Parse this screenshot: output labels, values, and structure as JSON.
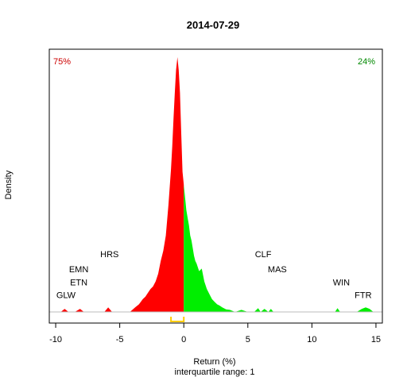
{
  "chart_data": {
    "type": "area",
    "title": "2014-07-29",
    "xlabel": "Return (%)",
    "xlabel_sub": "interquartile range: 1",
    "ylabel": "Density",
    "xlim": [
      -10.5,
      15.5
    ],
    "ylim": [
      0,
      1
    ],
    "xticks": [
      -10,
      -5,
      0,
      5,
      10,
      15
    ],
    "negative_share": "75%",
    "positive_share": "24%",
    "colors": {
      "negative": "#ff0000",
      "positive": "#00ee00",
      "iqr": "#ffcc00",
      "baseline": "#bebebe"
    },
    "iqr": [
      -1.0,
      0.0
    ],
    "density": {
      "x": [
        -10.5,
        -9.6,
        -9.3,
        -9.0,
        -8.5,
        -8.1,
        -7.8,
        -7.5,
        -6.2,
        -5.9,
        -5.6,
        -5.0,
        -4.2,
        -3.8,
        -3.5,
        -3.2,
        -3.0,
        -2.8,
        -2.6,
        -2.4,
        -2.2,
        -2.0,
        -1.8,
        -1.6,
        -1.4,
        -1.2,
        -1.0,
        -0.9,
        -0.8,
        -0.7,
        -0.6,
        -0.5,
        -0.4,
        -0.3,
        -0.2,
        -0.1,
        0.0,
        0.1,
        0.2,
        0.3,
        0.4,
        0.5,
        0.6,
        0.7,
        0.8,
        0.9,
        1.0,
        1.2,
        1.4,
        1.6,
        1.8,
        2.0,
        2.2,
        2.4,
        2.6,
        2.8,
        3.0,
        3.3,
        3.6,
        4.0,
        4.5,
        5.0,
        5.5,
        5.8,
        6.0,
        6.3,
        6.6,
        6.8,
        7.0,
        7.3,
        7.6,
        8.0,
        10.0,
        11.8,
        12.0,
        12.2,
        12.5,
        12.8,
        13.0,
        13.5,
        13.9,
        14.2,
        14.5,
        14.8,
        15.5
      ],
      "y": [
        0.0,
        0.0,
        0.012,
        0.0,
        0.0,
        0.012,
        0.0,
        0.0,
        0.0,
        0.018,
        0.0,
        0.0,
        0.0,
        0.018,
        0.03,
        0.05,
        0.06,
        0.075,
        0.09,
        0.1,
        0.12,
        0.15,
        0.2,
        0.24,
        0.3,
        0.42,
        0.56,
        0.65,
        0.76,
        0.86,
        0.95,
        1.0,
        0.95,
        0.86,
        0.7,
        0.55,
        0.5,
        0.45,
        0.4,
        0.37,
        0.34,
        0.3,
        0.28,
        0.25,
        0.22,
        0.2,
        0.19,
        0.16,
        0.17,
        0.12,
        0.09,
        0.07,
        0.05,
        0.04,
        0.03,
        0.025,
        0.018,
        0.01,
        0.008,
        0.0,
        0.008,
        0.0,
        0.0,
        0.015,
        0.0,
        0.012,
        0.0,
        0.012,
        0.0,
        0.0,
        0.0,
        0.0,
        0.0,
        0.0,
        0.015,
        0.0,
        0.0,
        0.0,
        0.0,
        0.0,
        0.012,
        0.018,
        0.012,
        0.0,
        0.0
      ]
    },
    "annotations": [
      {
        "text": "GLW",
        "x": -9.2,
        "y": 0.055
      },
      {
        "text": "EMN",
        "x": -8.2,
        "y": 0.155
      },
      {
        "text": "ETN",
        "x": -8.2,
        "y": 0.105
      },
      {
        "text": "HRS",
        "x": -5.8,
        "y": 0.215
      },
      {
        "text": "CLF",
        "x": 6.2,
        "y": 0.215
      },
      {
        "text": "MAS",
        "x": 7.3,
        "y": 0.155
      },
      {
        "text": "WIN",
        "x": 12.3,
        "y": 0.105
      },
      {
        "text": "FTR",
        "x": 14.0,
        "y": 0.055
      }
    ]
  }
}
